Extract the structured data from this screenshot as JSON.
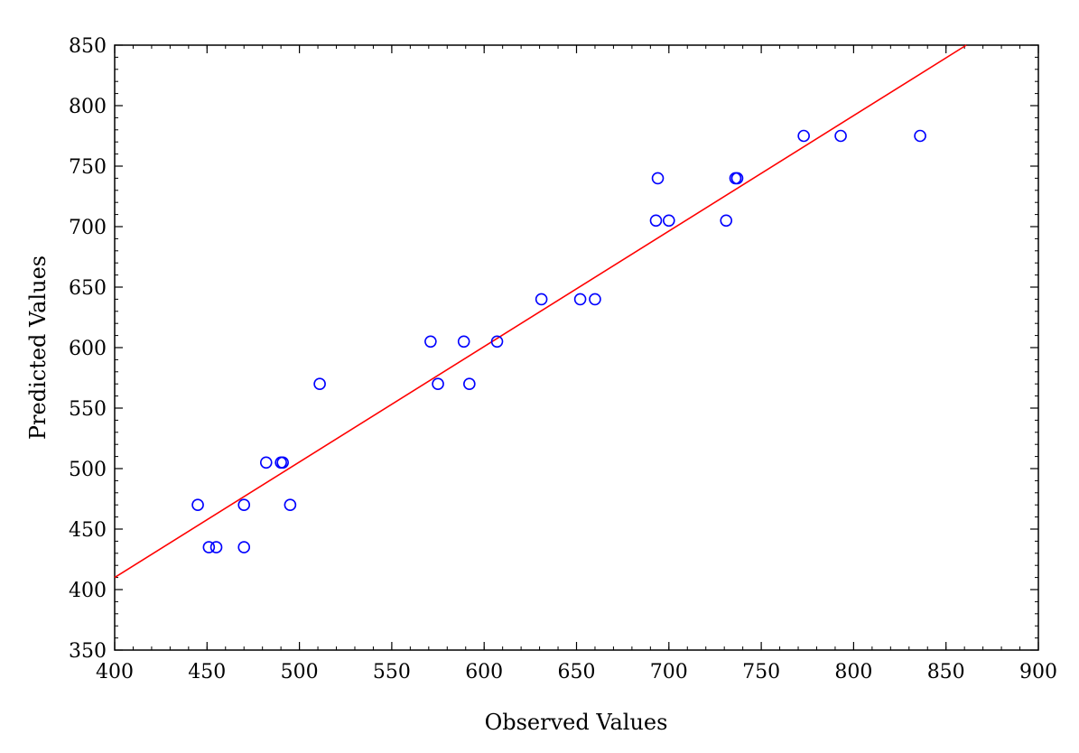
{
  "chart_data": {
    "type": "scatter",
    "title": "",
    "xlabel": "Observed Values",
    "ylabel": "Predicted Values",
    "xlim": [
      400,
      900
    ],
    "ylim": [
      350,
      850
    ],
    "xticks": [
      400,
      450,
      500,
      550,
      600,
      650,
      700,
      750,
      800,
      850,
      900
    ],
    "yticks": [
      350,
      400,
      450,
      500,
      550,
      600,
      650,
      700,
      750,
      800,
      850
    ],
    "grid": false,
    "marker_color": "#0000ff",
    "line_color": "#ff0000",
    "series": [
      {
        "x": [
          445,
          451,
          455,
          470,
          470,
          482,
          490,
          491,
          495,
          511,
          571,
          575,
          589,
          592,
          607,
          631,
          652,
          660,
          693,
          694,
          700,
          731,
          736,
          737,
          773,
          793,
          836
        ],
        "y": [
          470,
          435,
          435,
          470,
          435,
          505,
          505,
          505,
          470,
          570,
          605,
          570,
          605,
          570,
          605,
          640,
          640,
          640,
          705,
          740,
          705,
          705,
          740,
          740,
          775,
          775,
          775
        ]
      }
    ],
    "fit_line": {
      "x": [
        400,
        861
      ],
      "y": [
        410,
        850
      ]
    }
  }
}
